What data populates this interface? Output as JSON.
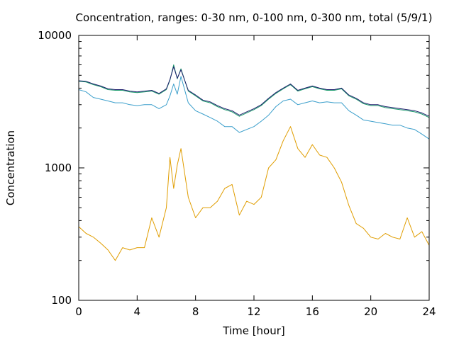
{
  "chart_data": {
    "type": "line",
    "title": "Concentration, ranges: 0-30 nm, 0-100 nm, 0-300 nm, total (5/9/1)",
    "xlabel": "Time [hour]",
    "ylabel": "Concentration",
    "xlim": [
      0,
      24
    ],
    "ylim": [
      100,
      10000
    ],
    "yscale": "log",
    "grid": false,
    "legend": "none",
    "x_ticks": [
      "0",
      "4",
      "8",
      "12",
      "16",
      "20",
      "24"
    ],
    "y_ticks": [
      "100",
      "1000",
      "10000"
    ],
    "x": [
      0,
      0.5,
      1,
      1.5,
      2,
      2.5,
      3,
      3.5,
      4,
      4.5,
      5,
      5.5,
      6,
      6.25,
      6.5,
      6.75,
      7,
      7.5,
      8,
      8.5,
      9,
      9.5,
      10,
      10.5,
      11,
      11.5,
      12,
      12.5,
      13,
      13.5,
      14,
      14.5,
      15,
      15.5,
      16,
      16.5,
      17,
      17.5,
      18,
      18.5,
      19,
      19.5,
      20,
      20.5,
      21,
      21.5,
      22,
      22.5,
      23,
      23.5,
      24
    ],
    "series": [
      {
        "color": "#e09d00",
        "values": [
          360,
          320,
          300,
          270,
          240,
          200,
          250,
          240,
          250,
          250,
          420,
          300,
          500,
          1200,
          700,
          1050,
          1400,
          600,
          420,
          500,
          500,
          560,
          700,
          750,
          440,
          560,
          530,
          600,
          1000,
          1150,
          1600,
          2050,
          1400,
          1200,
          1500,
          1250,
          1200,
          1000,
          780,
          520,
          380,
          350,
          300,
          290,
          320,
          300,
          290,
          420,
          300,
          330,
          260
        ]
      },
      {
        "color": "#3a9ecb",
        "values": [
          3900,
          3750,
          3400,
          3300,
          3200,
          3100,
          3100,
          3000,
          2950,
          3000,
          3000,
          2800,
          3000,
          3500,
          4300,
          3600,
          4900,
          3100,
          2700,
          2550,
          2400,
          2250,
          2050,
          2050,
          1850,
          1950,
          2050,
          2250,
          2500,
          2900,
          3200,
          3300,
          3000,
          3100,
          3200,
          3100,
          3150,
          3100,
          3100,
          2700,
          2500,
          2300,
          2250,
          2200,
          2150,
          2100,
          2100,
          2000,
          1950,
          1800,
          1650
        ]
      },
      {
        "color": "#1b9a6c",
        "values": [
          4500,
          4450,
          4250,
          4100,
          3900,
          3850,
          3850,
          3750,
          3700,
          3750,
          3800,
          3600,
          3900,
          4600,
          6000,
          4700,
          5600,
          3800,
          3500,
          3200,
          3100,
          2900,
          2750,
          2650,
          2450,
          2600,
          2750,
          2950,
          3300,
          3650,
          3950,
          4250,
          3800,
          3950,
          4100,
          3950,
          3850,
          3850,
          3950,
          3500,
          3300,
          3050,
          2950,
          2950,
          2850,
          2800,
          2750,
          2700,
          2650,
          2550,
          2400
        ]
      },
      {
        "color": "#20206e",
        "values": [
          4550,
          4500,
          4300,
          4150,
          3950,
          3900,
          3900,
          3800,
          3750,
          3800,
          3850,
          3650,
          3950,
          4650,
          5800,
          4750,
          5500,
          3850,
          3550,
          3250,
          3150,
          2950,
          2800,
          2700,
          2500,
          2650,
          2800,
          3000,
          3350,
          3700,
          4000,
          4300,
          3850,
          4000,
          4150,
          4000,
          3900,
          3900,
          4000,
          3550,
          3350,
          3100,
          3000,
          3000,
          2900,
          2850,
          2800,
          2750,
          2700,
          2600,
          2450
        ]
      }
    ]
  }
}
